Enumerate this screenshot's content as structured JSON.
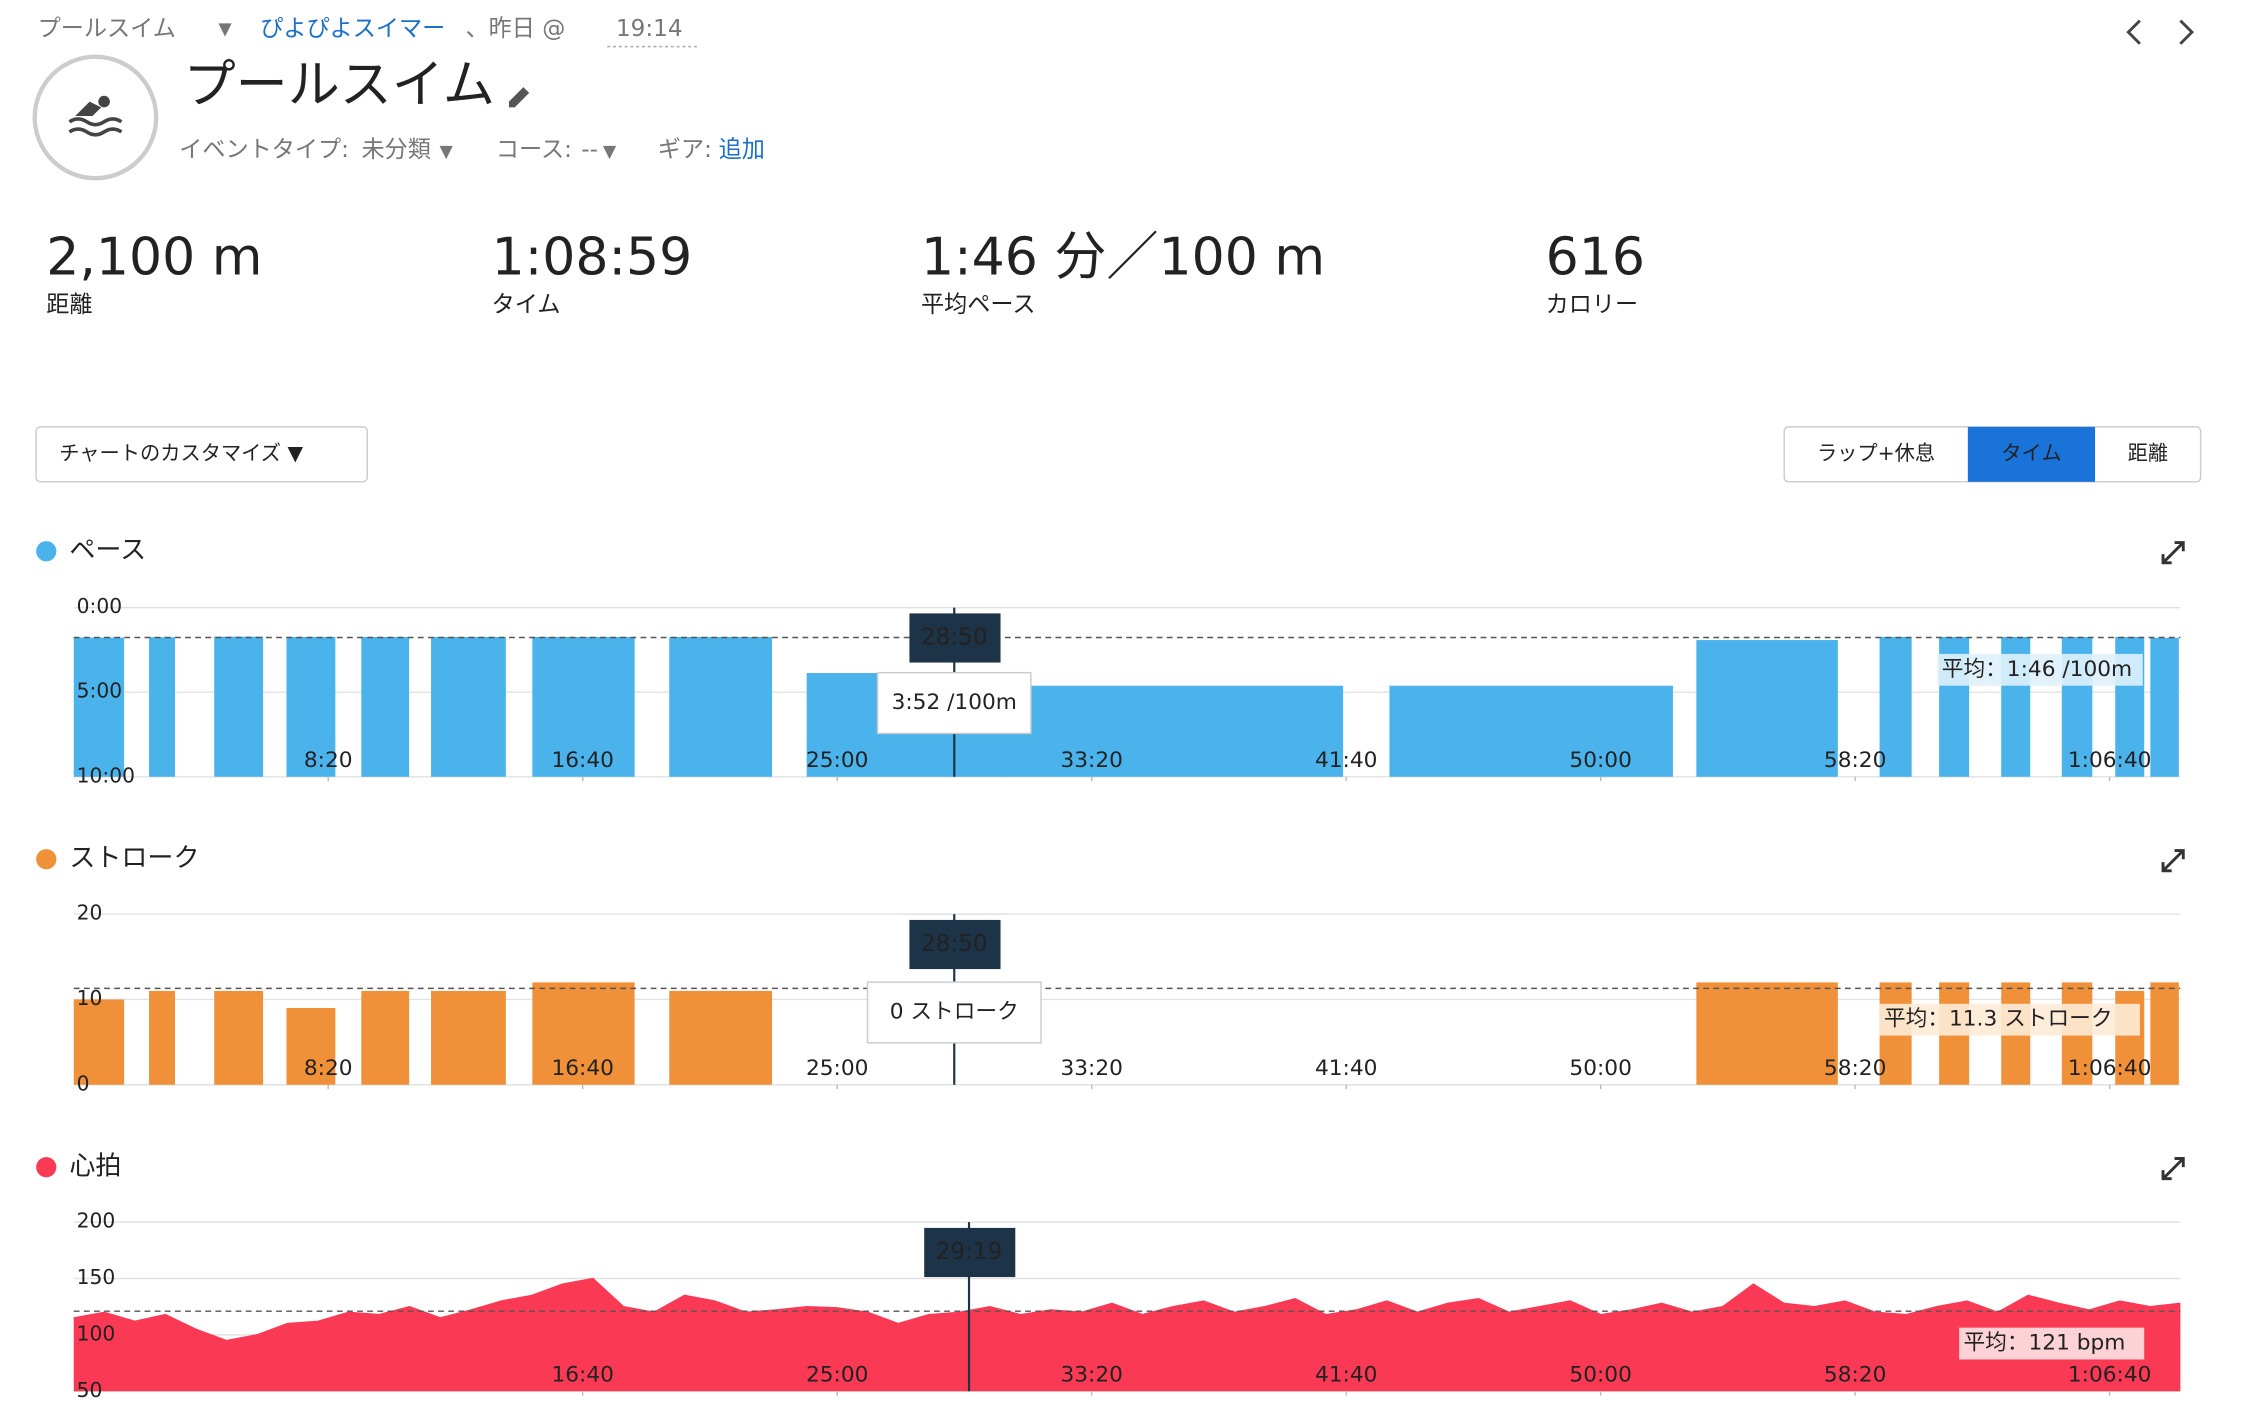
{
  "header": {
    "breadcrumb": "プールスイム",
    "breadcrumb_caret": "▼",
    "user": "ぴよぴよスイマー",
    "when": "、昨日 @",
    "time": "19:14",
    "title": "プールスイム",
    "event_type_label": "イベントタイプ:",
    "event_type": "未分類",
    "event_caret": "▼",
    "course_label": "コース:",
    "course": "--",
    "course_caret": "▼",
    "gear_label": "ギア:",
    "gear_link": "追加"
  },
  "stats": [
    {
      "value": "2,100 m",
      "label": "距離"
    },
    {
      "value": "1:08:59",
      "label": "タイム"
    },
    {
      "value": "1:46 分／100 m",
      "label": "平均ペース"
    },
    {
      "value": "616",
      "label": "カロリー"
    }
  ],
  "controls": {
    "customize": "チャートのカスタマイズ ▼",
    "tabs": [
      "ラップ+休息",
      "タイム",
      "距離"
    ],
    "active_tab": 1
  },
  "chart_data": [
    {
      "type": "bar",
      "title": "ペース",
      "reversed": true,
      "xlim": [
        0,
        4139
      ],
      "ylim": [
        0,
        600
      ],
      "yticks": [
        {
          "value": 0,
          "label": "0:00"
        },
        {
          "value": 300,
          "label": "5:00"
        },
        {
          "value": 600,
          "label": "10:00"
        }
      ],
      "xticks": [
        {
          "value": 500,
          "label": "8:20"
        },
        {
          "value": 1000,
          "label": "16:40"
        },
        {
          "value": 1500,
          "label": "25:00"
        },
        {
          "value": 2000,
          "label": "33:20"
        },
        {
          "value": 2500,
          "label": "41:40"
        },
        {
          "value": 3000,
          "label": "50:00"
        },
        {
          "value": 3500,
          "label": "58:20"
        },
        {
          "value": 4000,
          "label": "1:06:40"
        }
      ],
      "series": [
        {
          "name": "ペース",
          "color": "#4ab3ec",
          "x": [
            0,
            148,
            276,
            418,
            565,
            702,
            901,
            1170,
            1440,
            1815,
            2585,
            3188,
            3548,
            3665,
            3787,
            3906,
            4011,
            4080
          ],
          "x_end": [
            99,
            199,
            372,
            514,
            659,
            849,
            1102,
            1372,
            1815,
            2494,
            3142,
            3466,
            3611,
            3724,
            3844,
            3966,
            4068,
            4136
          ],
          "values": [
            106,
            105,
            103,
            104,
            104,
            104,
            104,
            104,
            232,
            277,
            277,
            115,
            104,
            104,
            104,
            104,
            104,
            107
          ]
        }
      ],
      "average": {
        "value": 106,
        "label": "平均：1:46 /100m"
      },
      "cursor": {
        "value": 1730,
        "label": "28:50"
      },
      "tooltip": {
        "value": 232,
        "label": "3:52 /100m"
      }
    },
    {
      "type": "bar",
      "title": "ストローク",
      "reversed": false,
      "xlim": [
        0,
        4139
      ],
      "ylim": [
        0,
        20
      ],
      "yticks": [
        0,
        10,
        20
      ],
      "xticks": [
        {
          "value": 500,
          "label": "8:20"
        },
        {
          "value": 1000,
          "label": "16:40"
        },
        {
          "value": 1500,
          "label": "25:00"
        },
        {
          "value": 2000,
          "label": "33:20"
        },
        {
          "value": 2500,
          "label": "41:40"
        },
        {
          "value": 3000,
          "label": "50:00"
        },
        {
          "value": 3500,
          "label": "58:20"
        },
        {
          "value": 4000,
          "label": "1:06:40"
        }
      ],
      "series": [
        {
          "name": "ストローク",
          "color": "#f0913a",
          "x": [
            0,
            148,
            276,
            418,
            565,
            702,
            901,
            1170,
            3188,
            3548,
            3665,
            3787,
            3906,
            4011,
            4080
          ],
          "x_end": [
            99,
            199,
            372,
            514,
            659,
            849,
            1102,
            1372,
            3466,
            3611,
            3724,
            3844,
            3966,
            4068,
            4136
          ],
          "values": [
            10,
            11,
            11,
            9,
            11,
            11,
            12,
            11,
            12,
            12,
            12,
            12,
            12,
            11,
            12
          ]
        }
      ],
      "average": {
        "value": 11.3,
        "label": "平均：11.3 ストローク"
      },
      "cursor": {
        "value": 1730,
        "label": "28:50"
      },
      "tooltip": {
        "value": 0,
        "label": "0 ストローク"
      }
    },
    {
      "type": "area",
      "title": "心拍",
      "reversed": false,
      "xlim": [
        0,
        4139
      ],
      "ylim": [
        50,
        200
      ],
      "yticks": [
        50,
        100,
        150,
        200
      ],
      "xticks": [
        {
          "value": 1000,
          "label": "16:40"
        },
        {
          "value": 1500,
          "label": "25:00"
        },
        {
          "value": 2000,
          "label": "33:20"
        },
        {
          "value": 2500,
          "label": "41:40"
        },
        {
          "value": 3000,
          "label": "50:00"
        },
        {
          "value": 3500,
          "label": "58:20"
        },
        {
          "value": 4000,
          "label": "1:06:40"
        }
      ],
      "series": [
        {
          "name": "心拍",
          "color": "#fa3a55",
          "x": [
            0,
            60,
            120,
            180,
            240,
            300,
            360,
            420,
            480,
            540,
            600,
            660,
            720,
            780,
            840,
            900,
            960,
            1020,
            1080,
            1140,
            1200,
            1260,
            1320,
            1380,
            1440,
            1500,
            1560,
            1620,
            1680,
            1740,
            1800,
            1860,
            1920,
            1980,
            2040,
            2100,
            2160,
            2220,
            2280,
            2340,
            2400,
            2460,
            2520,
            2580,
            2640,
            2700,
            2760,
            2820,
            2880,
            2940,
            3000,
            3060,
            3120,
            3180,
            3240,
            3300,
            3360,
            3420,
            3480,
            3540,
            3600,
            3660,
            3720,
            3780,
            3840,
            3900,
            3960,
            4020,
            4080,
            4139
          ],
          "values": [
            115,
            120,
            112,
            118,
            105,
            95,
            100,
            110,
            112,
            120,
            118,
            125,
            115,
            122,
            130,
            135,
            145,
            150,
            125,
            120,
            135,
            130,
            120,
            122,
            125,
            124,
            120,
            110,
            118,
            120,
            125,
            118,
            122,
            120,
            128,
            118,
            125,
            130,
            120,
            125,
            132,
            118,
            122,
            130,
            120,
            128,
            132,
            120,
            125,
            130,
            118,
            122,
            128,
            120,
            125,
            145,
            128,
            125,
            130,
            120,
            118,
            125,
            130,
            120,
            135,
            128,
            122,
            130,
            125,
            128
          ]
        }
      ],
      "average": {
        "value": 121,
        "label": "平均：121 bpm"
      },
      "cursor": {
        "value": 1759,
        "label": "29:19"
      }
    }
  ]
}
